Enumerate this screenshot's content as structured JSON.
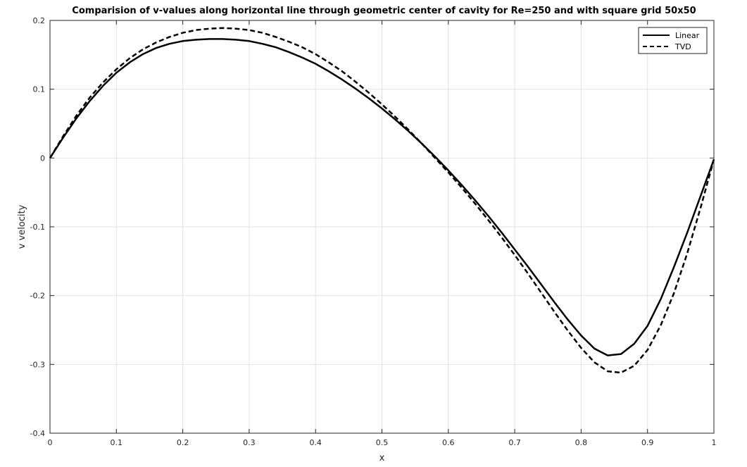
{
  "chart_data": {
    "type": "line",
    "title": "Comparision of v-values along horizontal line through geometric center of cavity for Re=250 and with square grid 50x50",
    "xlabel": "x",
    "ylabel": "v velocity",
    "xlim": [
      0,
      1
    ],
    "ylim": [
      -0.4,
      0.2
    ],
    "xticks": [
      0,
      0.1,
      0.2,
      0.3,
      0.4,
      0.5,
      0.6,
      0.7,
      0.8,
      0.9,
      1
    ],
    "xtick_labels": [
      "0",
      "0.1",
      "0.2",
      "0.3",
      "0.4",
      "0.5",
      "0.6",
      "0.7",
      "0.8",
      "0.9",
      "1"
    ],
    "yticks": [
      -0.4,
      -0.3,
      -0.2,
      -0.1,
      0,
      0.1,
      0.2
    ],
    "ytick_labels": [
      "-0.4",
      "-0.3",
      "-0.2",
      "-0.1",
      "0",
      "0.1",
      "0.2"
    ],
    "grid": true,
    "legend_position": "top-right",
    "series": [
      {
        "name": "Linear",
        "style": "solid",
        "color": "#000000",
        "x": [
          0,
          0.02,
          0.04,
          0.06,
          0.08,
          0.1,
          0.12,
          0.14,
          0.16,
          0.18,
          0.2,
          0.22,
          0.24,
          0.26,
          0.28,
          0.3,
          0.32,
          0.34,
          0.36,
          0.38,
          0.4,
          0.42,
          0.44,
          0.46,
          0.48,
          0.5,
          0.52,
          0.54,
          0.56,
          0.58,
          0.6,
          0.62,
          0.64,
          0.66,
          0.68,
          0.7,
          0.72,
          0.74,
          0.76,
          0.78,
          0.8,
          0.82,
          0.84,
          0.86,
          0.88,
          0.9,
          0.92,
          0.94,
          0.96,
          0.98,
          1
        ],
        "y": [
          0,
          0.03,
          0.058,
          0.083,
          0.105,
          0.124,
          0.139,
          0.151,
          0.16,
          0.166,
          0.17,
          0.172,
          0.173,
          0.173,
          0.172,
          0.17,
          0.166,
          0.161,
          0.154,
          0.146,
          0.137,
          0.126,
          0.114,
          0.101,
          0.087,
          0.072,
          0.056,
          0.039,
          0.021,
          0.002,
          -0.018,
          -0.039,
          -0.061,
          -0.084,
          -0.108,
          -0.133,
          -0.158,
          -0.184,
          -0.21,
          -0.235,
          -0.258,
          -0.277,
          -0.287,
          -0.285,
          -0.27,
          -0.244,
          -0.205,
          -0.158,
          -0.108,
          -0.055,
          -0.002
        ]
      },
      {
        "name": "TVD",
        "style": "dashed",
        "color": "#000000",
        "x": [
          0,
          0.02,
          0.04,
          0.06,
          0.08,
          0.1,
          0.12,
          0.14,
          0.16,
          0.18,
          0.2,
          0.22,
          0.24,
          0.26,
          0.28,
          0.3,
          0.32,
          0.34,
          0.36,
          0.38,
          0.4,
          0.42,
          0.44,
          0.46,
          0.48,
          0.5,
          0.52,
          0.54,
          0.56,
          0.58,
          0.6,
          0.62,
          0.64,
          0.66,
          0.68,
          0.7,
          0.72,
          0.74,
          0.76,
          0.78,
          0.8,
          0.82,
          0.84,
          0.86,
          0.88,
          0.9,
          0.92,
          0.94,
          0.96,
          0.98,
          1
        ],
        "y": [
          0,
          0.032,
          0.062,
          0.088,
          0.11,
          0.129,
          0.145,
          0.158,
          0.168,
          0.176,
          0.182,
          0.186,
          0.188,
          0.189,
          0.188,
          0.186,
          0.182,
          0.176,
          0.169,
          0.161,
          0.151,
          0.139,
          0.126,
          0.111,
          0.095,
          0.078,
          0.06,
          0.041,
          0.021,
          0.0,
          -0.021,
          -0.043,
          -0.066,
          -0.09,
          -0.115,
          -0.141,
          -0.168,
          -0.196,
          -0.224,
          -0.251,
          -0.276,
          -0.297,
          -0.31,
          -0.312,
          -0.302,
          -0.279,
          -0.243,
          -0.196,
          -0.138,
          -0.072,
          -0.002
        ]
      }
    ]
  }
}
